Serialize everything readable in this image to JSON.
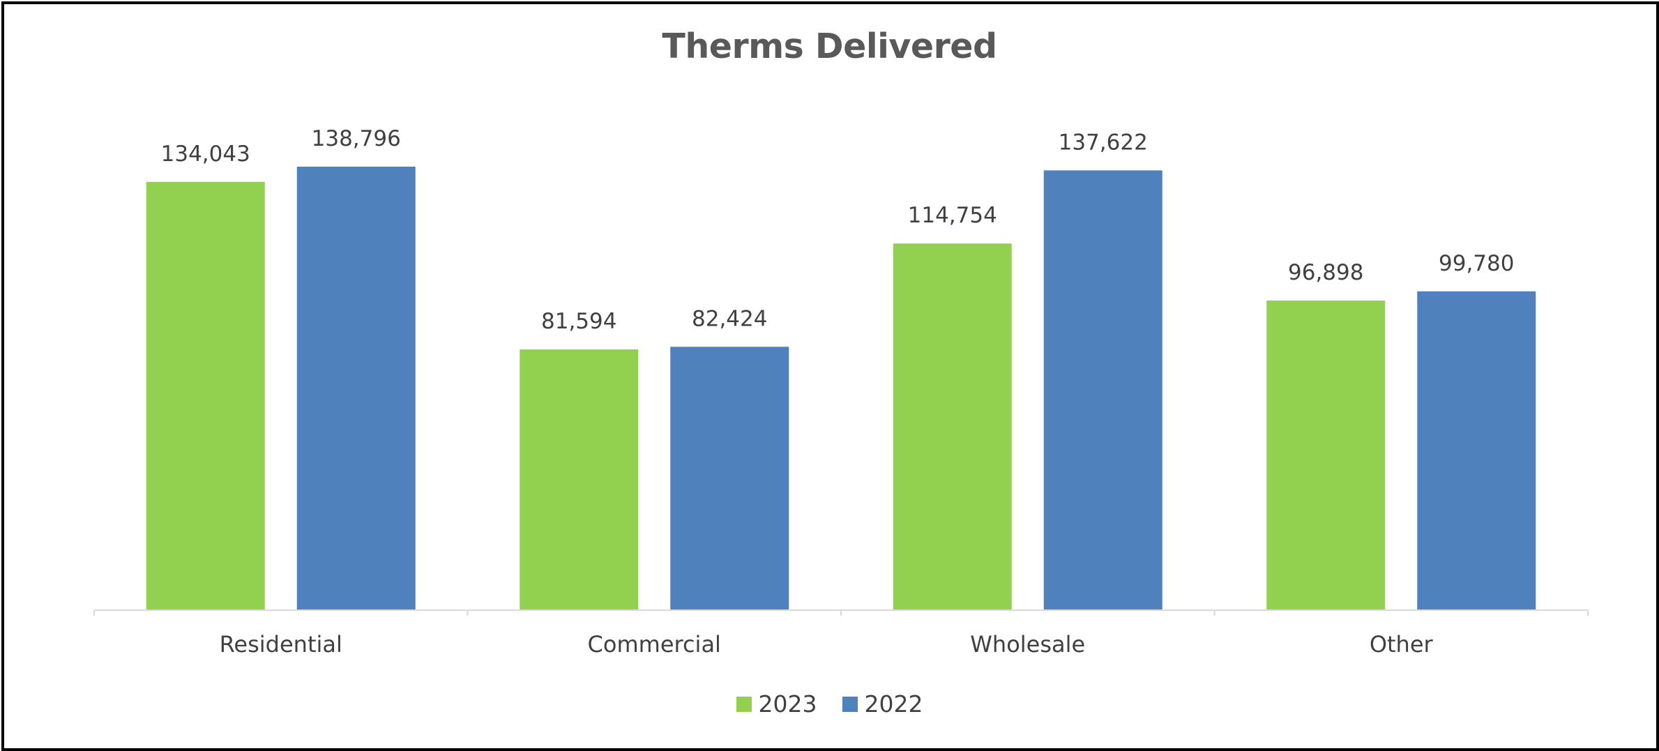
{
  "chart_data": {
    "type": "bar",
    "title": "Therms Delivered",
    "xlabel": "",
    "ylabel": "",
    "categories": [
      "Residential",
      "Commercial",
      "Wholesale",
      "Other"
    ],
    "series": [
      {
        "name": "2023",
        "color": "#92D050",
        "values": [
          134043,
          81594,
          114754,
          96898
        ],
        "labels": [
          "134,043",
          "81,594",
          "114,754",
          "96,898"
        ]
      },
      {
        "name": "2022",
        "color": "#4F81BD",
        "values": [
          138796,
          82424,
          137622,
          99780
        ],
        "labels": [
          "138,796",
          "82,424",
          "137,622",
          "99,780"
        ]
      }
    ],
    "ylim": [
      0,
      145000
    ],
    "grid": false,
    "legend": "bottom-center",
    "axis_color": "#d9d9d9"
  }
}
